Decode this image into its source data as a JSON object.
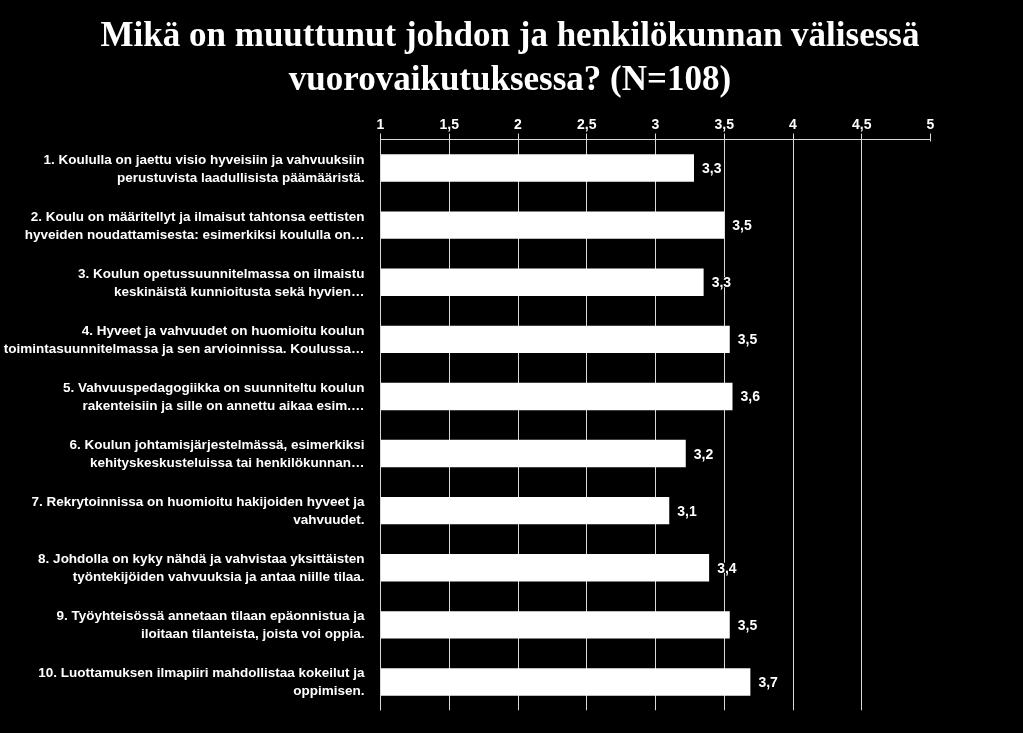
{
  "chart_data": {
    "type": "bar",
    "orientation": "horizontal",
    "title": "Mikä on muuttunut johdon ja henkilökunnan välisessä\nvuorovaikutuksessa? (N=108)",
    "categories": [
      "1. Koululla on jaettu visio hyveisiin ja vahvuuksiin\nperustuvista laadullisista päämääristä.",
      "2. Koulu on määritellyt ja ilmaisut tahtonsa eettisten\nhyveiden noudattamisesta: esimerkiksi koululla on…",
      "3. Koulun opetussuunnitelmassa on ilmaistu\nkeskinäistä kunnioitusta sekä hyvien…",
      "4. Hyveet ja vahvuudet on huomioitu koulun\ntoimintasuunnitelmassa ja sen arvioinnissa. Koulussa…",
      "5. Vahvuuspedagogiikka on suunniteltu koulun\nrakenteisiin ja sille on annettu aikaa esim.…",
      "6. Koulun johtamisjärjestelmässä, esimerkiksi\nkehityskeskusteluissa tai henkilökunnan…",
      "7. Rekrytoinnissa on huomioitu hakijoiden hyveet ja\nvahvuudet.",
      "8. Johdolla on kyky nähdä ja vahvistaa yksittäisten\ntyöntekijöiden vahvuuksia ja antaa niille tilaa.",
      "9. Työyhteisössä annetaan tilaan epäonnistua ja\niloitaan tilanteista, joista voi oppia.",
      "10. Luottamuksen ilmapiiri mahdollistaa kokeilut ja\noppimisen."
    ],
    "values": [
      3.28,
      3.5,
      3.35,
      3.54,
      3.56,
      3.22,
      3.1,
      3.39,
      3.54,
      3.69
    ],
    "value_labels": [
      "3,3",
      "3,5",
      "3,3",
      "3,5",
      "3,6",
      "3,2",
      "3,1",
      "3,4",
      "3,5",
      "3,7"
    ],
    "color": "#ffffff",
    "xlim": [
      1,
      5
    ],
    "xticks": [
      1,
      {
        "value": 1.5,
        "label": "1,5"
      },
      2,
      {
        "value": 2.5,
        "label": "2,5"
      },
      3,
      {
        "value": 3.5,
        "label": "3,5"
      },
      4,
      {
        "value": 4.5,
        "label": "4,5"
      },
      5
    ],
    "grid": "x"
  }
}
